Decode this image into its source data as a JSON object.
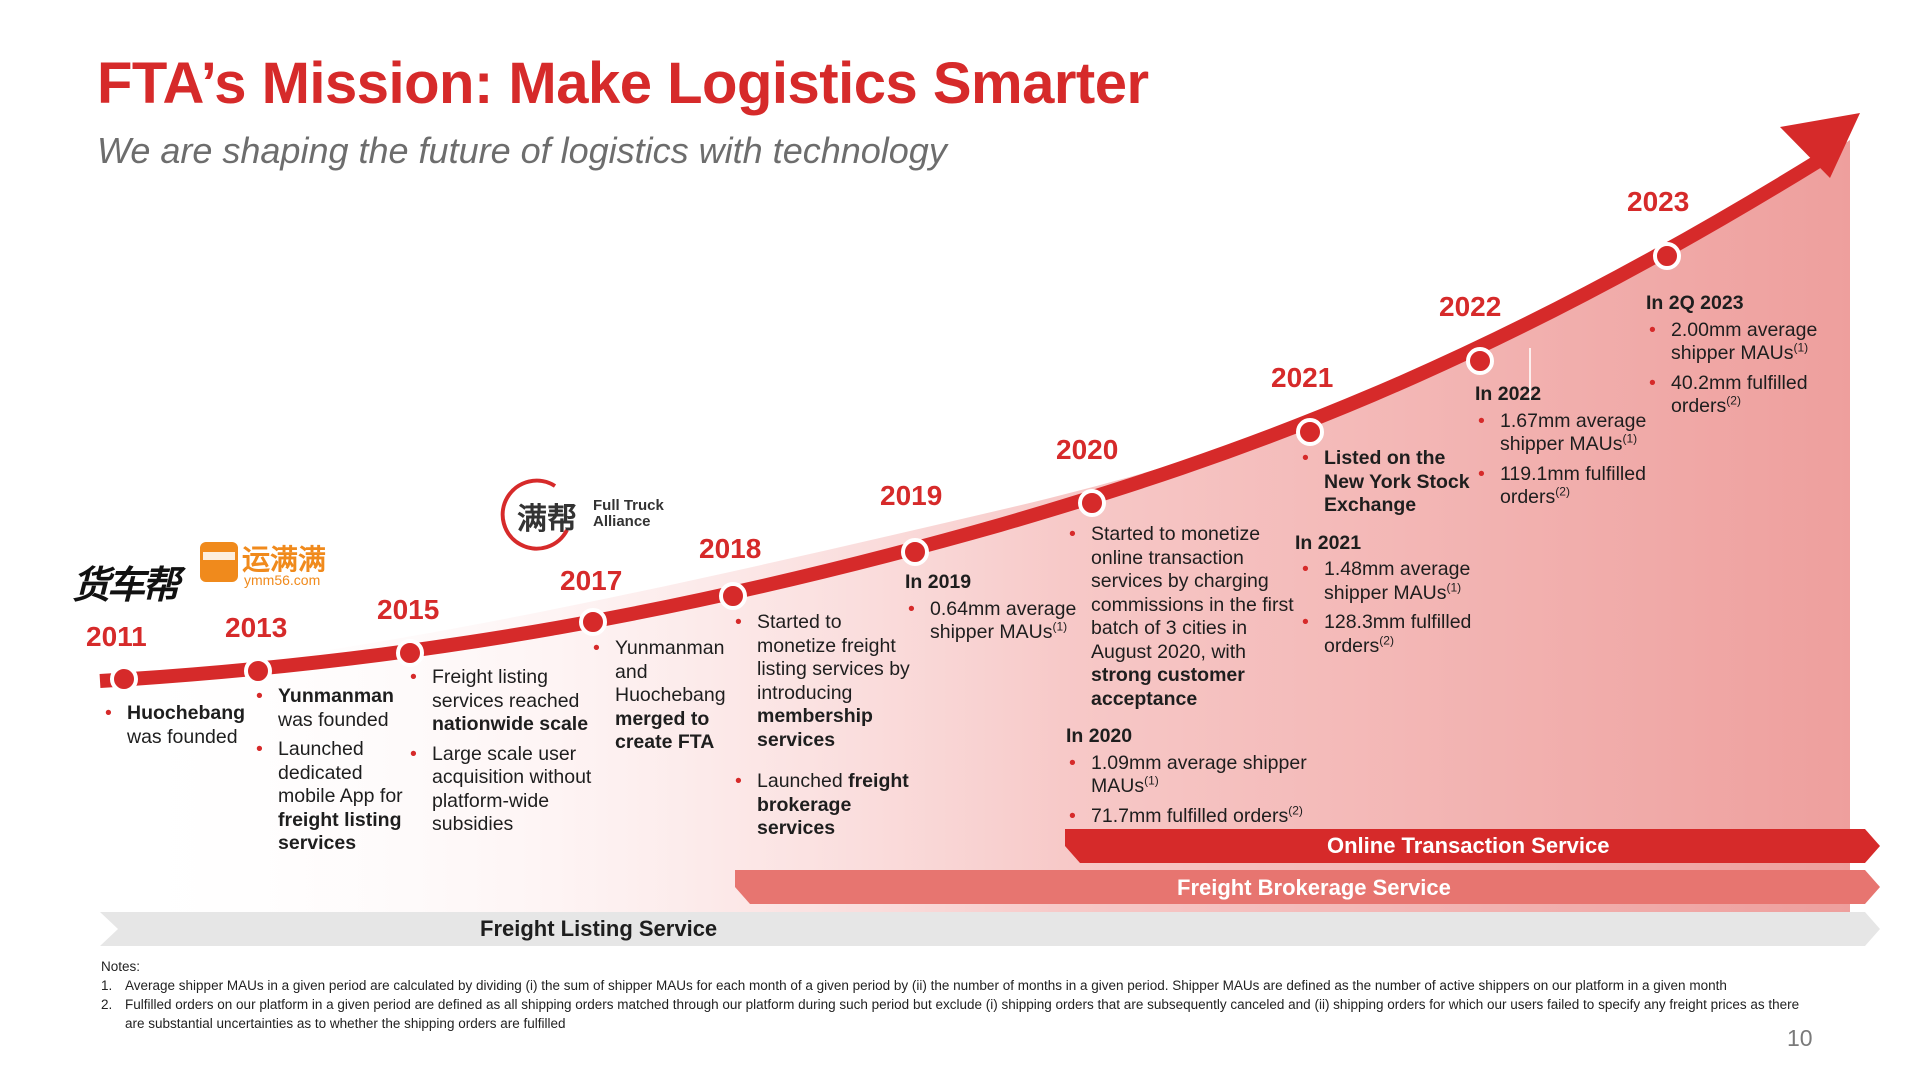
{
  "header": {
    "title": "FTA’s Mission: Make Logistics Smarter",
    "subtitle": "We are shaping the future of logistics with technology"
  },
  "logos": {
    "huochebang": "货车帮",
    "yunmanman": "运满满",
    "yunmanman_url": "ymm56.com",
    "fta_cn": "满帮",
    "fta_en_1": "Full Truck",
    "fta_en_2": "Alliance"
  },
  "timeline": {
    "y2011": {
      "year": "2011",
      "b1_bold": "Huochebang",
      "b1_text": "was founded"
    },
    "y2013": {
      "year": "2013",
      "b1_bold": "Yunmanman",
      "b1_text": "was founded",
      "b2_a": "Launched dedicated mobile App for ",
      "b2_bold": "freight listing services"
    },
    "y2015": {
      "year": "2015",
      "b1_a": "Freight listing services reached ",
      "b1_bold": "nationwide scale",
      "b2": "Large scale user acquisition without platform-wide subsidies"
    },
    "y2017": {
      "year": "2017",
      "b1_a": "Yunmanman and Huochebang ",
      "b1_bold": "merged to create FTA"
    },
    "y2018": {
      "year": "2018",
      "b1_a": "Started to monetize freight listing services by introducing ",
      "b1_bold": "membership services",
      "b2_a": "Launched ",
      "b2_bold": "freight brokerage services"
    },
    "y2019": {
      "year": "2019",
      "heading": "In 2019",
      "b1": "0.64mm average shipper MAUs",
      "b1_sup": "(1)"
    },
    "y2020": {
      "year": "2020",
      "b1_a": "Started to monetize online transaction services by charging commissions in the first batch of 3 cities in August 2020, with ",
      "b1_bold": "strong customer acceptance",
      "heading": "In 2020",
      "b2": "1.09mm average shipper MAUs",
      "b2_sup": "(1)",
      "b3": "71.7mm fulfilled orders",
      "b3_sup": "(2)"
    },
    "y2021": {
      "year": "2021",
      "b1_bold": "Listed on the New York Stock Exchange",
      "heading": "In 2021",
      "b2": "1.48mm average shipper MAUs",
      "b2_sup": "(1)",
      "b3": "128.3mm fulfilled orders",
      "b3_sup": "(2)"
    },
    "y2022": {
      "year": "2022",
      "heading": "In 2022",
      "b1": "1.67mm average shipper MAUs",
      "b1_sup": "(1)",
      "b2": "119.1mm fulfilled orders",
      "b2_sup": "(2)"
    },
    "y2023": {
      "year": "2023",
      "heading": "In 2Q 2023",
      "b1": "2.00mm average shipper MAUs",
      "b1_sup": "(1)",
      "b2": "40.2mm fulfilled orders",
      "b2_sup": "(2)"
    }
  },
  "bands": {
    "online": "Online Transaction Service",
    "brokerage": "Freight Brokerage Service",
    "listing": "Freight Listing Service"
  },
  "notes": {
    "heading": "Notes:",
    "n1_num": "1.",
    "n1": "Average shipper MAUs in a given period are calculated by dividing (i) the sum of shipper MAUs for each month of a given period by (ii) the number of months in a given period. Shipper MAUs are defined as the number of active shippers on our platform in a given month",
    "n2_num": "2.",
    "n2": "Fulfilled orders on our platform in a given period are defined as all shipping orders matched through our platform during such period but exclude (i) shipping orders that are subsequently canceled and (ii) shipping orders for which our users failed to specify any freight prices as there are substantial uncertainties as to whether the shipping orders are fulfilled"
  },
  "page_number": "10",
  "colors": {
    "accent": "#d62a2a",
    "brokerage_band": "#e77570",
    "listing_band": "#e6e6e6"
  }
}
